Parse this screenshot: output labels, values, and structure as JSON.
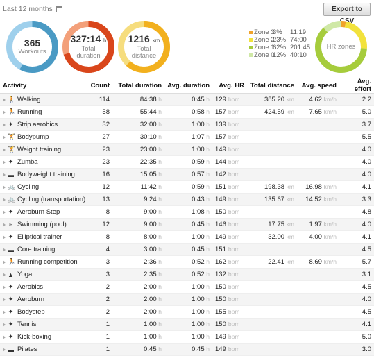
{
  "header": {
    "period": "Last 12 months",
    "export_label": "Export to CSV"
  },
  "summary": {
    "workouts": {
      "value": "365",
      "label": "Workouts",
      "colors": [
        "#4a9ac4",
        "#9fd0ec"
      ],
      "fraction": 0.58
    },
    "duration": {
      "value": "327:14",
      "unit": "h",
      "label1": "Total",
      "label2": "duration",
      "colors": [
        "#d9461b",
        "#f3a07a"
      ],
      "fraction": 0.7
    },
    "distance": {
      "value": "1216",
      "unit": "km",
      "label1": "Total",
      "label2": "distance",
      "colors": [
        "#f2b01e",
        "#f6dd7e"
      ],
      "fraction": 0.62
    }
  },
  "hr_zones": {
    "title": "HR zones",
    "zones": [
      {
        "name": "Zone 3",
        "pct": "3%",
        "time": "11:19",
        "color": "#f0a32a",
        "share": 0.03
      },
      {
        "name": "Zone 2",
        "pct": "23%",
        "time": "74:00",
        "color": "#f2e23c",
        "share": 0.23
      },
      {
        "name": "Zone 1",
        "pct": "62%",
        "time": "201:45",
        "color": "#a6cc3c",
        "share": 0.62
      },
      {
        "name": "Zone 0",
        "pct": "12%",
        "time": "40:10",
        "color": "#cfe8a6",
        "share": 0.12
      }
    ]
  },
  "table": {
    "columns": [
      "Activity",
      "Count",
      "Total duration",
      "Avg. duration",
      "Avg. HR",
      "Total distance",
      "Avg. speed",
      "Avg. effort"
    ],
    "units": {
      "hour": "h",
      "bpm": "bpm",
      "km": "km",
      "kmh": "km/h"
    },
    "rows": [
      {
        "icon": "walking-icon",
        "glyph": "🚶",
        "activity": "Walking",
        "count": "114",
        "total_duration": "84:38",
        "avg_duration": "0:45",
        "avg_hr": "129",
        "total_distance": "385.20",
        "avg_speed": "4.62",
        "avg_effort": "2.2"
      },
      {
        "icon": "running-icon",
        "glyph": "🏃",
        "activity": "Running",
        "count": "58",
        "total_duration": "55:44",
        "avg_duration": "0:58",
        "avg_hr": "157",
        "total_distance": "424.59",
        "avg_speed": "7.65",
        "avg_effort": "5.0"
      },
      {
        "icon": "strip-aerobics-icon",
        "glyph": "✦",
        "activity": "Strip aerobics",
        "count": "32",
        "total_duration": "32:00",
        "avg_duration": "1:00",
        "avg_hr": "139",
        "total_distance": "",
        "avg_speed": "",
        "avg_effort": "3.7"
      },
      {
        "icon": "bodypump-icon",
        "glyph": "🏋",
        "activity": "Bodypump",
        "count": "27",
        "total_duration": "30:10",
        "avg_duration": "1:07",
        "avg_hr": "157",
        "total_distance": "",
        "avg_speed": "",
        "avg_effort": "5.5"
      },
      {
        "icon": "weight-training-icon",
        "glyph": "🏋",
        "activity": "Weight training",
        "count": "23",
        "total_duration": "23:00",
        "avg_duration": "1:00",
        "avg_hr": "149",
        "total_distance": "",
        "avg_speed": "",
        "avg_effort": "4.0"
      },
      {
        "icon": "zumba-icon",
        "glyph": "✦",
        "activity": "Zumba",
        "count": "23",
        "total_duration": "22:35",
        "avg_duration": "0:59",
        "avg_hr": "144",
        "total_distance": "",
        "avg_speed": "",
        "avg_effort": "4.0"
      },
      {
        "icon": "bodyweight-training-icon",
        "glyph": "▬",
        "activity": "Bodyweight training",
        "count": "16",
        "total_duration": "15:05",
        "avg_duration": "0:57",
        "avg_hr": "142",
        "total_distance": "",
        "avg_speed": "",
        "avg_effort": "4.0"
      },
      {
        "icon": "cycling-icon",
        "glyph": "🚲",
        "activity": "Cycling",
        "count": "12",
        "total_duration": "11:42",
        "avg_duration": "0:59",
        "avg_hr": "151",
        "total_distance": "198.38",
        "avg_speed": "16.98",
        "avg_effort": "4.1"
      },
      {
        "icon": "cycling-transport-icon",
        "glyph": "🚲",
        "activity": "Cycling (transportation)",
        "count": "13",
        "total_duration": "9:24",
        "avg_duration": "0:43",
        "avg_hr": "149",
        "total_distance": "135.67",
        "avg_speed": "14.52",
        "avg_effort": "3.3"
      },
      {
        "icon": "aeroburn-step-icon",
        "glyph": "✦",
        "activity": "Aeroburn Step",
        "count": "8",
        "total_duration": "9:00",
        "avg_duration": "1:08",
        "avg_hr": "150",
        "total_distance": "",
        "avg_speed": "",
        "avg_effort": "4.8"
      },
      {
        "icon": "swimming-icon",
        "glyph": "≈",
        "activity": "Swimming (pool)",
        "count": "12",
        "total_duration": "9:00",
        "avg_duration": "0:45",
        "avg_hr": "146",
        "total_distance": "17.75",
        "avg_speed": "1.97",
        "avg_effort": "4.0"
      },
      {
        "icon": "elliptical-icon",
        "glyph": "✦",
        "activity": "Elliptical trainer",
        "count": "8",
        "total_duration": "8:00",
        "avg_duration": "1:00",
        "avg_hr": "149",
        "total_distance": "32.00",
        "avg_speed": "4.00",
        "avg_effort": "4.1"
      },
      {
        "icon": "core-training-icon",
        "glyph": "▬",
        "activity": "Core training",
        "count": "4",
        "total_duration": "3:00",
        "avg_duration": "0:45",
        "avg_hr": "151",
        "total_distance": "",
        "avg_speed": "",
        "avg_effort": "4.5"
      },
      {
        "icon": "running-competition-icon",
        "glyph": "🏃",
        "activity": "Running competition",
        "count": "3",
        "total_duration": "2:36",
        "avg_duration": "0:52",
        "avg_hr": "162",
        "total_distance": "22.41",
        "avg_speed": "8.69",
        "avg_effort": "5.7"
      },
      {
        "icon": "yoga-icon",
        "glyph": "▲",
        "activity": "Yoga",
        "count": "3",
        "total_duration": "2:35",
        "avg_duration": "0:52",
        "avg_hr": "132",
        "total_distance": "",
        "avg_speed": "",
        "avg_effort": "3.1"
      },
      {
        "icon": "aerobics-icon",
        "glyph": "✦",
        "activity": "Aerobics",
        "count": "2",
        "total_duration": "2:00",
        "avg_duration": "1:00",
        "avg_hr": "150",
        "total_distance": "",
        "avg_speed": "",
        "avg_effort": "4.5"
      },
      {
        "icon": "aeroburn-icon",
        "glyph": "✦",
        "activity": "Aeroburn",
        "count": "2",
        "total_duration": "2:00",
        "avg_duration": "1:00",
        "avg_hr": "150",
        "total_distance": "",
        "avg_speed": "",
        "avg_effort": "4.0"
      },
      {
        "icon": "bodystep-icon",
        "glyph": "✦",
        "activity": "Bodystep",
        "count": "2",
        "total_duration": "2:00",
        "avg_duration": "1:00",
        "avg_hr": "155",
        "total_distance": "",
        "avg_speed": "",
        "avg_effort": "4.5"
      },
      {
        "icon": "tennis-icon",
        "glyph": "✦",
        "activity": "Tennis",
        "count": "1",
        "total_duration": "1:00",
        "avg_duration": "1:00",
        "avg_hr": "150",
        "total_distance": "",
        "avg_speed": "",
        "avg_effort": "4.1"
      },
      {
        "icon": "kick-boxing-icon",
        "glyph": "✦",
        "activity": "Kick-boxing",
        "count": "1",
        "total_duration": "1:00",
        "avg_duration": "1:00",
        "avg_hr": "149",
        "total_distance": "",
        "avg_speed": "",
        "avg_effort": "5.0"
      },
      {
        "icon": "pilates-icon",
        "glyph": "▬",
        "activity": "Pilates",
        "count": "1",
        "total_duration": "0:45",
        "avg_duration": "0:45",
        "avg_hr": "149",
        "total_distance": "",
        "avg_speed": "",
        "avg_effort": "3.0"
      }
    ]
  }
}
